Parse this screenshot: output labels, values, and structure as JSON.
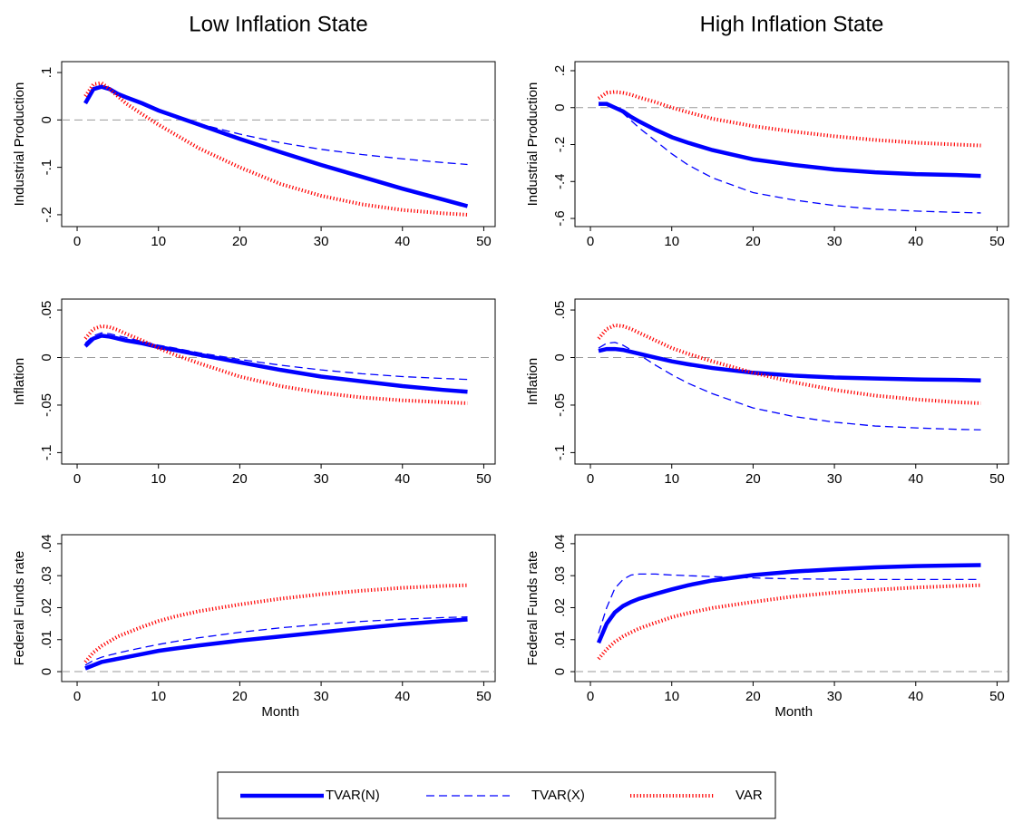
{
  "chart_data": [
    {
      "type": "line",
      "title": "Low Inflation State",
      "y_label": "Industrial Production",
      "x": [
        1,
        2,
        3,
        4,
        5,
        6,
        8,
        10,
        12,
        15,
        20,
        25,
        30,
        35,
        40,
        45,
        48
      ],
      "xlim": [
        -1.9,
        51.4
      ],
      "xticks": [
        0,
        10,
        20,
        30,
        40,
        50
      ],
      "ylim": [
        -0.225,
        0.123
      ],
      "yticks": [
        {
          "value": 0.1,
          "label": ".1"
        },
        0,
        {
          "value": -0.1,
          "label": "-.1"
        },
        {
          "value": -0.2,
          "label": "-.2"
        }
      ],
      "reference_line": 0,
      "series": [
        {
          "name": "TVAR(N)",
          "color": "#0000ff",
          "style": "solid",
          "values": [
            0.035,
            0.065,
            0.07,
            0.065,
            0.055,
            0.048,
            0.035,
            0.02,
            0.008,
            -0.01,
            -0.04,
            -0.068,
            -0.095,
            -0.12,
            -0.145,
            -0.168,
            -0.182
          ]
        },
        {
          "name": "TVAR(X)",
          "color": "#0000ff",
          "style": "dashed",
          "values": [
            0.04,
            0.068,
            0.072,
            0.066,
            0.056,
            0.049,
            0.035,
            0.02,
            0.008,
            -0.008,
            -0.03,
            -0.048,
            -0.062,
            -0.073,
            -0.082,
            -0.09,
            -0.094
          ]
        },
        {
          "name": "VAR",
          "color": "#ff0000",
          "style": "dotted",
          "values": [
            0.05,
            0.075,
            0.078,
            0.065,
            0.05,
            0.035,
            0.012,
            -0.01,
            -0.03,
            -0.06,
            -0.1,
            -0.135,
            -0.16,
            -0.178,
            -0.19,
            -0.197,
            -0.2
          ]
        }
      ]
    },
    {
      "type": "line",
      "title": "High Inflation State",
      "y_label": "Industrial Production",
      "x": [
        1,
        2,
        3,
        4,
        5,
        6,
        8,
        10,
        12,
        15,
        20,
        25,
        30,
        35,
        40,
        45,
        48
      ],
      "xlim": [
        -1.9,
        51.4
      ],
      "xticks": [
        0,
        10,
        20,
        30,
        40,
        50
      ],
      "ylim": [
        -0.644,
        0.249
      ],
      "yticks": [
        {
          "value": 0.2,
          "label": ".2"
        },
        0,
        {
          "value": -0.2,
          "label": "-.2"
        },
        {
          "value": -0.4,
          "label": "-.4"
        },
        {
          "value": -0.6,
          "label": "-.6"
        }
      ],
      "reference_line": 0,
      "series": [
        {
          "name": "TVAR(N)",
          "color": "#0000ff",
          "style": "solid",
          "values": [
            0.02,
            0.02,
            0.0,
            -0.02,
            -0.05,
            -0.075,
            -0.12,
            -0.16,
            -0.19,
            -0.23,
            -0.28,
            -0.31,
            -0.335,
            -0.35,
            -0.36,
            -0.365,
            -0.37
          ]
        },
        {
          "name": "TVAR(X)",
          "color": "#0000ff",
          "style": "dashed",
          "values": [
            0.02,
            0.02,
            0.0,
            -0.03,
            -0.07,
            -0.11,
            -0.18,
            -0.25,
            -0.31,
            -0.38,
            -0.46,
            -0.5,
            -0.53,
            -0.55,
            -0.56,
            -0.567,
            -0.57
          ]
        },
        {
          "name": "VAR",
          "color": "#ff0000",
          "style": "dotted",
          "values": [
            0.05,
            0.08,
            0.085,
            0.08,
            0.07,
            0.055,
            0.03,
            0.0,
            -0.025,
            -0.06,
            -0.1,
            -0.13,
            -0.155,
            -0.175,
            -0.19,
            -0.2,
            -0.205
          ]
        }
      ]
    },
    {
      "type": "line",
      "y_label": "Inflation",
      "x": [
        1,
        2,
        3,
        4,
        5,
        6,
        8,
        10,
        12,
        15,
        20,
        25,
        30,
        35,
        40,
        45,
        48
      ],
      "xlim": [
        -1.9,
        51.4
      ],
      "xticks": [
        0,
        10,
        20,
        30,
        40,
        50
      ],
      "ylim": [
        -0.112,
        0.0615
      ],
      "yticks": [
        {
          "value": 0.05,
          "label": ".05"
        },
        0,
        {
          "value": -0.05,
          "label": "-.05"
        },
        {
          "value": -0.1,
          "label": "-.1"
        }
      ],
      "reference_line": 0,
      "series": [
        {
          "name": "TVAR(N)",
          "color": "#0000ff",
          "style": "solid",
          "values": [
            0.012,
            0.02,
            0.023,
            0.022,
            0.02,
            0.018,
            0.015,
            0.011,
            0.008,
            0.003,
            -0.005,
            -0.013,
            -0.02,
            -0.025,
            -0.03,
            -0.034,
            -0.036
          ]
        },
        {
          "name": "TVAR(X)",
          "color": "#0000ff",
          "style": "dashed",
          "values": [
            0.015,
            0.023,
            0.026,
            0.025,
            0.023,
            0.021,
            0.017,
            0.013,
            0.01,
            0.005,
            -0.002,
            -0.008,
            -0.013,
            -0.017,
            -0.02,
            -0.022,
            -0.023
          ]
        },
        {
          "name": "VAR",
          "color": "#ff0000",
          "style": "dotted",
          "values": [
            0.02,
            0.03,
            0.033,
            0.032,
            0.029,
            0.025,
            0.018,
            0.01,
            0.003,
            -0.006,
            -0.02,
            -0.03,
            -0.037,
            -0.042,
            -0.045,
            -0.047,
            -0.048
          ]
        }
      ]
    },
    {
      "type": "line",
      "y_label": "Inflation",
      "x": [
        1,
        2,
        3,
        4,
        5,
        6,
        8,
        10,
        12,
        15,
        20,
        25,
        30,
        35,
        40,
        45,
        48
      ],
      "xlim": [
        -1.9,
        51.4
      ],
      "xticks": [
        0,
        10,
        20,
        30,
        40,
        50
      ],
      "ylim": [
        -0.112,
        0.0615
      ],
      "yticks": [
        {
          "value": 0.05,
          "label": ".05"
        },
        0,
        {
          "value": -0.05,
          "label": "-.05"
        },
        {
          "value": -0.1,
          "label": "-.1"
        }
      ],
      "reference_line": 0,
      "series": [
        {
          "name": "TVAR(N)",
          "color": "#0000ff",
          "style": "solid",
          "values": [
            0.007,
            0.009,
            0.009,
            0.008,
            0.006,
            0.004,
            0.0,
            -0.004,
            -0.007,
            -0.011,
            -0.016,
            -0.019,
            -0.021,
            -0.022,
            -0.023,
            -0.0235,
            -0.024
          ]
        },
        {
          "name": "TVAR(X)",
          "color": "#0000ff",
          "style": "dashed",
          "values": [
            0.01,
            0.015,
            0.016,
            0.013,
            0.008,
            0.003,
            -0.008,
            -0.018,
            -0.027,
            -0.038,
            -0.053,
            -0.062,
            -0.068,
            -0.072,
            -0.074,
            -0.0755,
            -0.076
          ]
        },
        {
          "name": "VAR",
          "color": "#ff0000",
          "style": "dotted",
          "values": [
            0.02,
            0.03,
            0.034,
            0.033,
            0.03,
            0.026,
            0.018,
            0.01,
            0.004,
            -0.004,
            -0.016,
            -0.026,
            -0.034,
            -0.04,
            -0.044,
            -0.047,
            -0.048
          ]
        }
      ]
    },
    {
      "type": "line",
      "y_label": "Federal Funds rate",
      "x_label": "Month",
      "x": [
        1,
        2,
        3,
        4,
        5,
        6,
        8,
        10,
        12,
        15,
        20,
        25,
        30,
        35,
        40,
        45,
        48
      ],
      "xlim": [
        -1.9,
        51.4
      ],
      "xticks": [
        0,
        10,
        20,
        30,
        40,
        50
      ],
      "ylim": [
        -0.0031,
        0.0428
      ],
      "yticks": [
        {
          "value": 0.04,
          "label": ".04"
        },
        {
          "value": 0.03,
          "label": ".03"
        },
        {
          "value": 0.02,
          "label": ".02"
        },
        {
          "value": 0.01,
          "label": ".01"
        },
        0
      ],
      "reference_line": 0,
      "series": [
        {
          "name": "TVAR(N)",
          "color": "#0000ff",
          "style": "solid",
          "values": [
            0.001,
            0.002,
            0.003,
            0.0035,
            0.004,
            0.0045,
            0.0055,
            0.0065,
            0.0072,
            0.0082,
            0.0097,
            0.011,
            0.0123,
            0.0136,
            0.0148,
            0.0158,
            0.0163
          ]
        },
        {
          "name": "TVAR(X)",
          "color": "#0000ff",
          "style": "dashed",
          "values": [
            0.002,
            0.0035,
            0.0045,
            0.0052,
            0.0058,
            0.0064,
            0.0075,
            0.0085,
            0.0094,
            0.0106,
            0.0123,
            0.0137,
            0.0148,
            0.0157,
            0.0164,
            0.0169,
            0.0171
          ]
        },
        {
          "name": "VAR",
          "color": "#ff0000",
          "style": "dotted",
          "values": [
            0.003,
            0.006,
            0.008,
            0.0095,
            0.011,
            0.012,
            0.014,
            0.0158,
            0.0172,
            0.0189,
            0.021,
            0.0228,
            0.0242,
            0.0253,
            0.0262,
            0.0268,
            0.027
          ]
        }
      ]
    },
    {
      "type": "line",
      "y_label": "Federal Funds rate",
      "x_label": "Month",
      "x": [
        1,
        2,
        3,
        4,
        5,
        6,
        8,
        10,
        12,
        15,
        20,
        25,
        30,
        35,
        40,
        45,
        48
      ],
      "xlim": [
        -1.9,
        51.4
      ],
      "xticks": [
        0,
        10,
        20,
        30,
        40,
        50
      ],
      "ylim": [
        -0.0031,
        0.0428
      ],
      "yticks": [
        {
          "value": 0.04,
          "label": ".04"
        },
        {
          "value": 0.03,
          "label": ".03"
        },
        {
          "value": 0.02,
          "label": ".02"
        },
        {
          "value": 0.01,
          "label": ".01"
        },
        0
      ],
      "reference_line": 0,
      "series": [
        {
          "name": "TVAR(N)",
          "color": "#0000ff",
          "style": "solid",
          "values": [
            0.009,
            0.015,
            0.0185,
            0.0205,
            0.0218,
            0.0228,
            0.0243,
            0.0257,
            0.027,
            0.0285,
            0.0302,
            0.0313,
            0.032,
            0.0326,
            0.033,
            0.0332,
            0.0333
          ]
        },
        {
          "name": "TVAR(X)",
          "color": "#0000ff",
          "style": "dashed",
          "values": [
            0.012,
            0.02,
            0.026,
            0.0288,
            0.0302,
            0.0305,
            0.0305,
            0.0302,
            0.03,
            0.0297,
            0.0293,
            0.029,
            0.0289,
            0.0288,
            0.0288,
            0.0288,
            0.0288
          ]
        },
        {
          "name": "VAR",
          "color": "#ff0000",
          "style": "dotted",
          "values": [
            0.004,
            0.007,
            0.0093,
            0.011,
            0.0123,
            0.0135,
            0.0153,
            0.017,
            0.0183,
            0.0199,
            0.0218,
            0.0235,
            0.0247,
            0.0256,
            0.0263,
            0.0268,
            0.027
          ]
        }
      ]
    }
  ]
}
